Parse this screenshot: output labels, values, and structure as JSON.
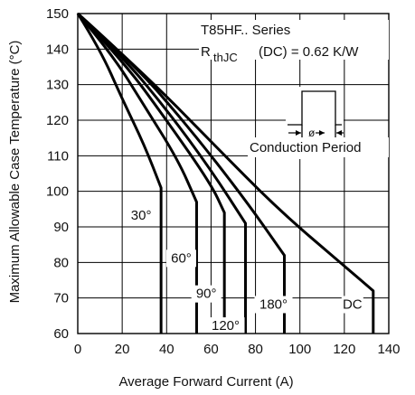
{
  "chart_data": {
    "type": "line",
    "xlabel": "Average Forward Current (A)",
    "ylabel": "Maximum Allowable Case Temperature (°C)",
    "xlim": [
      0,
      140
    ],
    "ylim": [
      60,
      150
    ],
    "xticks": [
      0,
      20,
      40,
      60,
      80,
      100,
      120,
      140
    ],
    "yticks": [
      60,
      70,
      80,
      90,
      100,
      110,
      120,
      130,
      140,
      150
    ],
    "grid": true,
    "series": [
      {
        "name": "30°",
        "x": [
          0,
          10,
          20,
          30,
          37.5,
          37.5
        ],
        "y": [
          150,
          140,
          126,
          113,
          101,
          60
        ]
      },
      {
        "name": "60°",
        "x": [
          0,
          15,
          30,
          45,
          53.5,
          53.5
        ],
        "y": [
          150,
          139,
          124,
          109,
          97,
          60
        ]
      },
      {
        "name": "90°",
        "x": [
          0,
          20,
          40,
          60,
          66,
          66
        ],
        "y": [
          150,
          137,
          120,
          102,
          94,
          60
        ]
      },
      {
        "name": "120°",
        "x": [
          0,
          20,
          40,
          60,
          75.5,
          75.5
        ],
        "y": [
          150,
          138,
          123,
          106,
          91,
          60
        ]
      },
      {
        "name": "180°",
        "x": [
          0,
          25,
          50,
          75,
          93,
          93
        ],
        "y": [
          150,
          136,
          118,
          98,
          82,
          60
        ]
      },
      {
        "name": "DC",
        "x": [
          0,
          30,
          60,
          90,
          120,
          133,
          133
        ],
        "y": [
          150,
          133,
          114,
          95,
          79,
          72,
          60
        ]
      }
    ],
    "annotations": {
      "series_title": "T85HF.. Series",
      "rth_prefix": "R",
      "rth_sub": "thJC",
      "rth_suffix": "(DC) = 0.62 K/W",
      "conduction_label": "Conduction Period",
      "phi_symbol": "ø"
    }
  }
}
